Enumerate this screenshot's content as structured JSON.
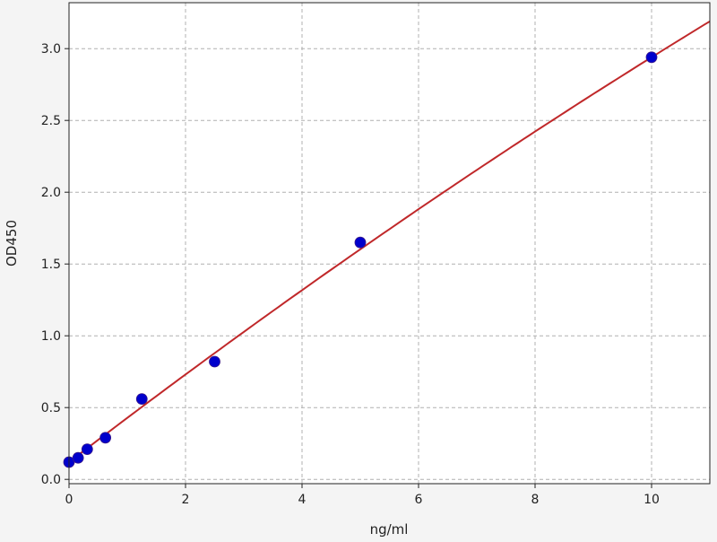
{
  "chart_data": {
    "type": "scatter",
    "title": "",
    "xlabel": "ng/ml",
    "ylabel": "OD450",
    "xlim": [
      0,
      11
    ],
    "ylim": [
      -0.03,
      3.32
    ],
    "xticks": [
      0,
      2,
      4,
      6,
      8,
      10
    ],
    "yticks": [
      0.0,
      0.5,
      1.0,
      1.5,
      2.0,
      2.5,
      3.0
    ],
    "xtick_labels": [
      "0",
      "2",
      "4",
      "6",
      "8",
      "10"
    ],
    "ytick_labels": [
      "0.0",
      "0.5",
      "1.0",
      "1.5",
      "2.0",
      "2.5",
      "3.0"
    ],
    "grid": true,
    "series": [
      {
        "type": "scatter",
        "color": "#0000cc",
        "x": [
          0,
          0.156,
          0.3125,
          0.625,
          1.25,
          2.5,
          5,
          10
        ],
        "y": [
          0.12,
          0.15,
          0.21,
          0.29,
          0.56,
          0.82,
          1.65,
          2.94
        ]
      },
      {
        "type": "line",
        "color": "#c0282a",
        "fit": "quadratic",
        "coefficients": [
          0.12,
          0.311,
          -0.0029
        ]
      }
    ]
  }
}
